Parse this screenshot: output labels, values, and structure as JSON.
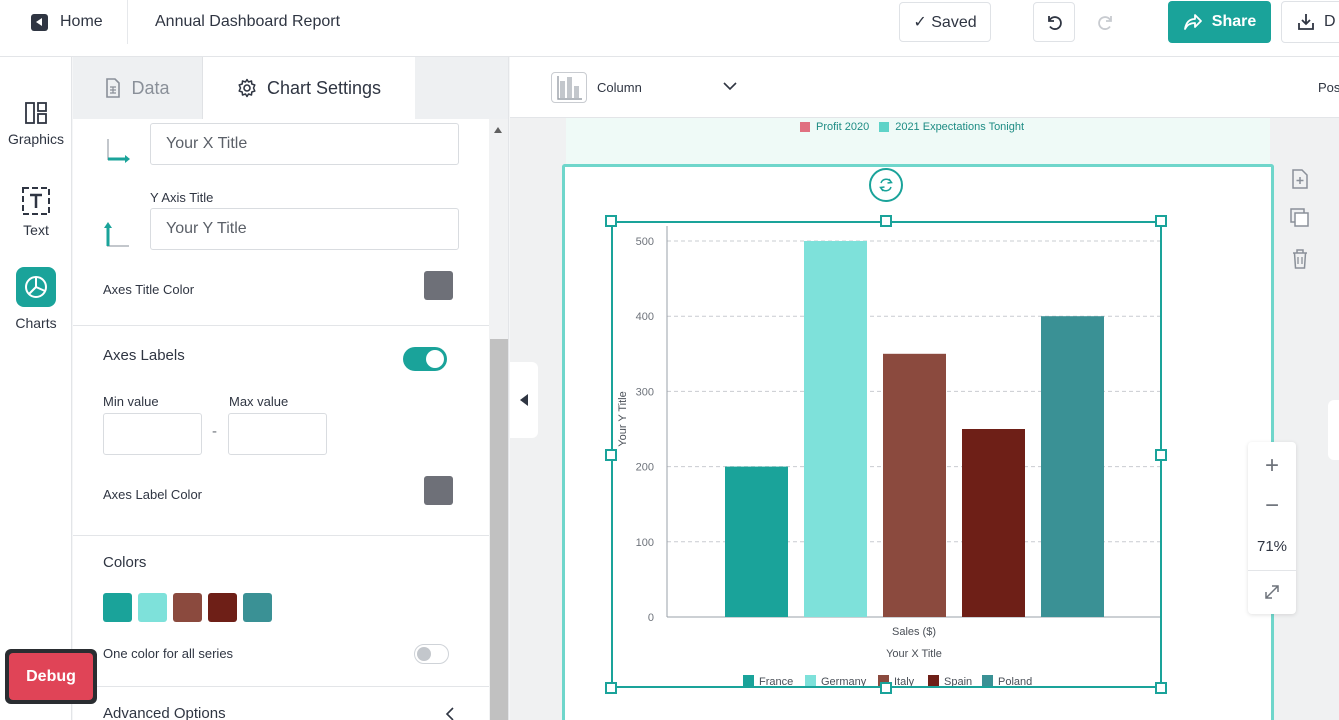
{
  "topbar": {
    "home_label": "Home",
    "doc_title": "Annual Dashboard Report",
    "saved_label": "✓ Saved",
    "share_label": "Share",
    "download_label": "D"
  },
  "rail": {
    "items": [
      {
        "label": "Graphics",
        "icon": "layout-icon"
      },
      {
        "label": "Text",
        "icon": "text-box-icon"
      },
      {
        "label": "Charts",
        "icon": "pie-chart-icon"
      }
    ]
  },
  "debug_label": "Debug",
  "panel": {
    "tabs": [
      {
        "label": "Data",
        "icon": "spreadsheet-icon"
      },
      {
        "label": "Chart Settings",
        "icon": "gear-icon"
      }
    ],
    "x_title_value": "Your X Title",
    "y_axis_title_label": "Y Axis Title",
    "y_title_value": "Your Y Title",
    "axes_title_color_label": "Axes Title Color",
    "axes_title_color": "#6e7078",
    "axes_labels_label": "Axes Labels",
    "axes_labels_on": true,
    "min_value_label": "Min value",
    "max_value_label": "Max value",
    "min_value": "",
    "max_value": "",
    "range_dash": "-",
    "axes_label_color_label": "Axes Label Color",
    "axes_label_color": "#6e7078",
    "colors_label": "Colors",
    "colors": [
      "#1aa39a",
      "#7ee1da",
      "#8b4a3e",
      "#6e1f17",
      "#3a9195"
    ],
    "one_color_label": "One color for all series",
    "one_color_on": false,
    "advanced_label": "Advanced Options"
  },
  "canvas": {
    "chart_type_label": "Column",
    "position_label": "Pos",
    "top_legend": [
      {
        "label": "Profit 2020",
        "color": "#e07080"
      },
      {
        "label": "2021 Expectations Tonight",
        "color": "#5fd3c8"
      }
    ],
    "zoom_value": "71%",
    "zoom_plus": "+",
    "zoom_minus": "−"
  },
  "chart_data": {
    "type": "bar",
    "categories": [
      "France",
      "Germany",
      "Italy",
      "Spain",
      "Poland"
    ],
    "values": [
      200,
      500,
      350,
      250,
      400
    ],
    "colors": [
      "#1aa39a",
      "#7ee1da",
      "#8b4a3e",
      "#6e1f17",
      "#3a9195"
    ],
    "yticks": [
      "0",
      "100",
      "200",
      "300",
      "400",
      "500"
    ],
    "ylim": [
      0,
      500
    ],
    "x_category_label": "Sales ($)",
    "xlabel": "Your X Title",
    "ylabel": "Your Y Title",
    "legend_position": "bottom",
    "grid": true
  }
}
